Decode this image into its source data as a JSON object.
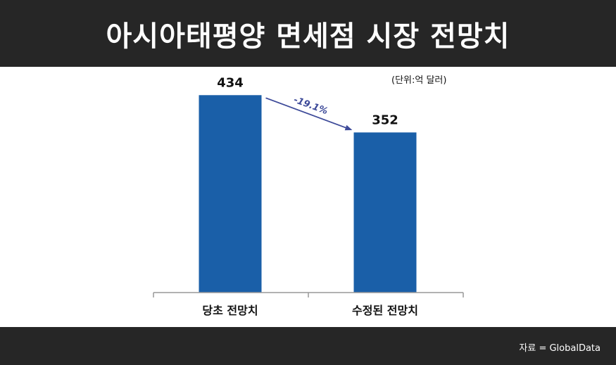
{
  "header": {
    "title": "아시아태평양 면세점 시장 전망치"
  },
  "unit_label": "(단위:억 달러)",
  "footer": {
    "source": "자료 = GlobalData"
  },
  "colors": {
    "header_bg": "#262626",
    "bar": "#1a5fa8",
    "arrow": "#3d4a99",
    "axis": "#999999"
  },
  "chart_data": {
    "type": "bar",
    "categories": [
      "당초 전망치",
      "수정된 전망치"
    ],
    "values": [
      434,
      352
    ],
    "data_labels": [
      "434",
      "352"
    ],
    "ylim": [
      0,
      470
    ],
    "grid": false,
    "annotation": {
      "text": "-19.1%",
      "from_category": 0,
      "to_category": 1
    }
  }
}
